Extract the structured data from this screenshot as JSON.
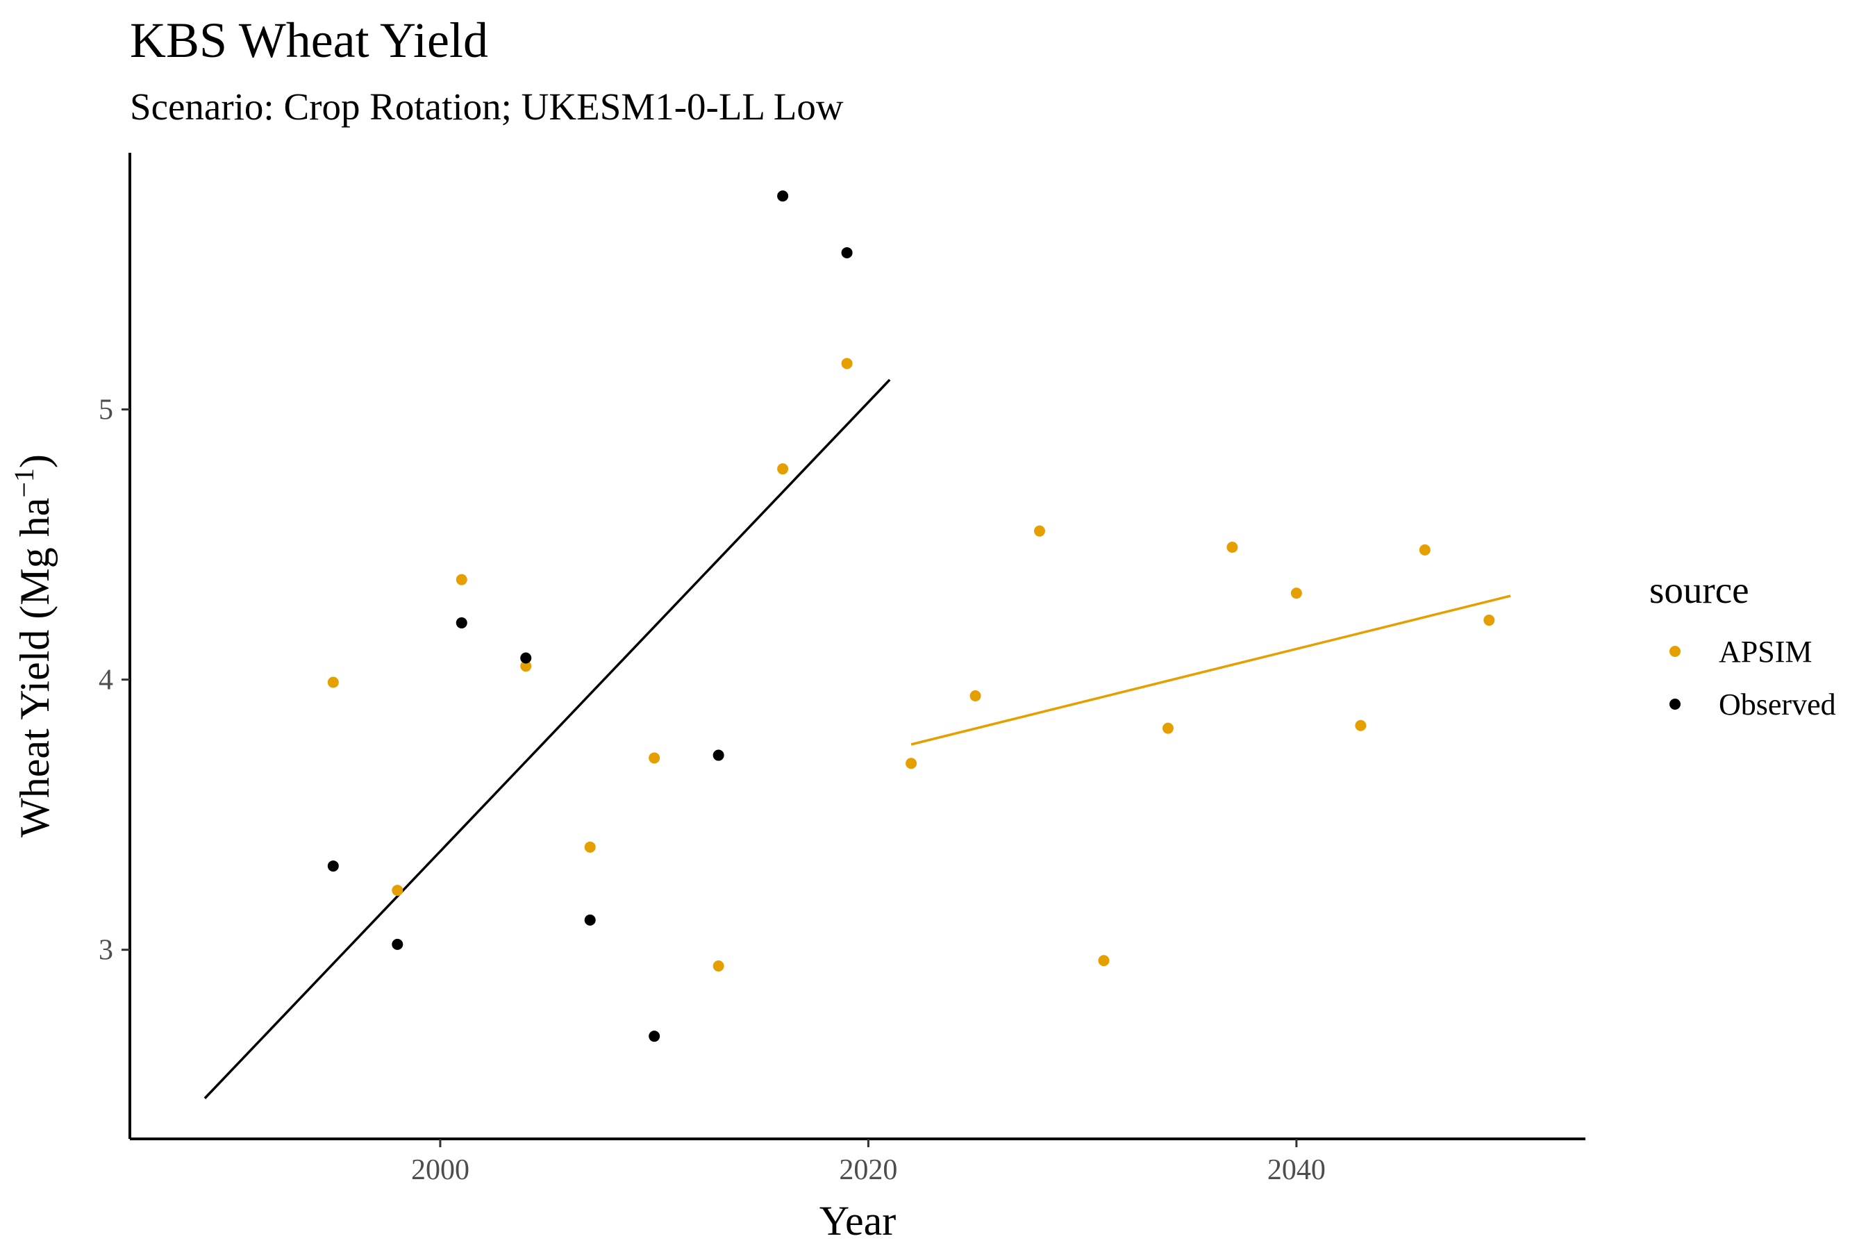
{
  "chart_data": {
    "type": "scatter",
    "title": "KBS Wheat Yield",
    "subtitle": "Scenario: Crop Rotation; UKESM1-0-LL Low",
    "xlabel": "Year",
    "ylabel_main": "Wheat Yield (Mg ha",
    "ylabel_sup": "−1",
    "ylabel_close": ")",
    "xlim": [
      1985.5,
      2053.5
    ],
    "ylim": [
      2.3,
      5.95
    ],
    "x_ticks": [
      2000,
      2020,
      2040
    ],
    "y_ticks": [
      3,
      4,
      5
    ],
    "grid": false,
    "legend": {
      "title": "source",
      "position": "right",
      "entries": [
        "APSIM",
        "Observed"
      ]
    },
    "series": [
      {
        "name": "APSIM",
        "color": "#E69F00",
        "points": [
          [
            1995,
            3.99
          ],
          [
            1998,
            3.22
          ],
          [
            2001,
            4.37
          ],
          [
            2004,
            4.05
          ],
          [
            2007,
            3.38
          ],
          [
            2010,
            3.71
          ],
          [
            2013,
            2.94
          ],
          [
            2016,
            4.78
          ],
          [
            2019,
            5.17
          ],
          [
            2022,
            3.69
          ],
          [
            2025,
            3.94
          ],
          [
            2028,
            4.55
          ],
          [
            2031,
            2.96
          ],
          [
            2034,
            3.82
          ],
          [
            2037,
            4.49
          ],
          [
            2040,
            4.32
          ],
          [
            2043,
            3.83
          ],
          [
            2046,
            4.48
          ],
          [
            2049,
            4.22
          ]
        ],
        "trend": [
          [
            2022,
            3.76
          ],
          [
            2050,
            4.31
          ]
        ]
      },
      {
        "name": "Observed",
        "color": "#000000",
        "points": [
          [
            1995,
            3.31
          ],
          [
            1998,
            3.02
          ],
          [
            2001,
            4.21
          ],
          [
            2004,
            4.08
          ],
          [
            2007,
            3.11
          ],
          [
            2010,
            2.68
          ],
          [
            2013,
            3.72
          ],
          [
            2016,
            5.79
          ],
          [
            2019,
            5.58
          ]
        ],
        "trend": [
          [
            1989,
            2.45
          ],
          [
            2021,
            5.11
          ]
        ]
      }
    ]
  }
}
